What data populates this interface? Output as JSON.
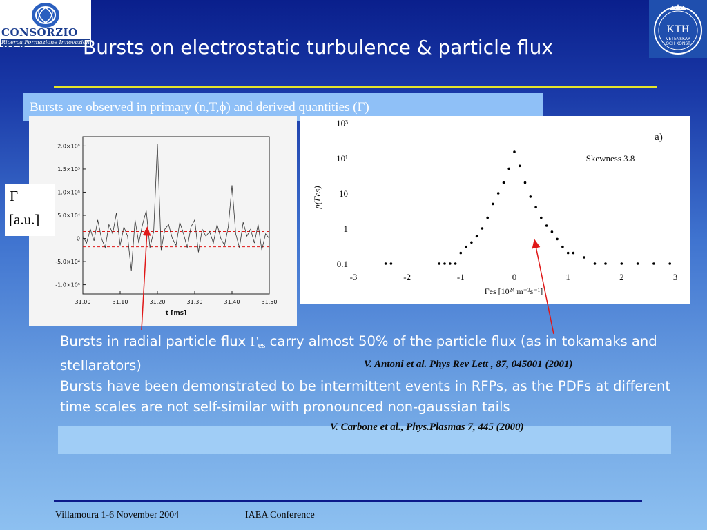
{
  "logos": {
    "left_name": "CONSORZIO RFX",
    "left_sub": "Ricerca Formazione Innovazione",
    "right_text1": "KTH",
    "right_text2": "VETENSKAP",
    "right_text3": "OCH KONST"
  },
  "title": "Bursts on electrostatic turbulence & particle flux",
  "subtitle": "Bursts are observed in primary (n,T,ϕ) and derived quantities (Γ)",
  "gamma_label": {
    "line1": "Γ",
    "line2": "[a.u.]"
  },
  "body": {
    "p1_a": "Bursts in radial particle flux ",
    "p1_gamma": "Γ",
    "p1_sub": "es",
    "p1_b": " carry almost 50% of the particle flux (as in tokamaks and stellarators)",
    "p2": "Bursts have been demonstrated to be  intermittent events in RFPs, as the PDFs at different time scales are not self-similar with pronounced non-gaussian tails"
  },
  "refs": {
    "ref1": "V. Antoni et al. Phys Rev Lett , 87, 045001 (2001)",
    "ref2": "V. Carbone et al., Phys.Plasmas 7, 445 (2000)"
  },
  "footer": {
    "left": "Villamoura 1-6 November 2004",
    "right": "IAEA Conference"
  },
  "colors": {
    "title_rule": "#e5e52a",
    "subtitle_bar": "#8fc0f7",
    "arrow": "#e01818",
    "footer_rule": "#0c1a8a"
  },
  "chart_data": [
    {
      "type": "line",
      "xlabel": "t [ms]",
      "ylabel": "",
      "x_ticks": [
        "31.00",
        "31.10",
        "31.20",
        "31.30",
        "31.40",
        "31.50"
      ],
      "y_ticks": [
        "2.0×10⁵",
        "1.5×10⁵",
        "1.0×10⁵",
        "5.0×10⁴",
        "0",
        "-5.0×10⁴",
        "-1.0×10⁵"
      ],
      "xlim": [
        31.0,
        31.5
      ],
      "ylim": [
        -120000,
        220000
      ],
      "threshold_lines": [
        15000,
        -18000
      ],
      "series": [
        {
          "x": [
            31.0,
            31.01,
            31.02,
            31.03,
            31.04,
            31.05,
            31.06,
            31.07,
            31.08,
            31.09,
            31.1,
            31.11,
            31.12,
            31.13,
            31.14,
            31.15,
            31.16,
            31.17,
            31.18,
            31.19,
            31.2,
            31.21,
            31.22,
            31.23,
            31.24,
            31.25,
            31.26,
            31.27,
            31.28,
            31.29,
            31.3,
            31.31,
            31.32,
            31.33,
            31.34,
            31.35,
            31.36,
            31.37,
            31.38,
            31.39,
            31.4,
            31.41,
            31.42,
            31.43,
            31.44,
            31.45,
            31.46,
            31.47,
            31.48,
            31.49,
            31.5
          ],
          "y": [
            5000,
            -10000,
            20000,
            -5000,
            40000,
            0,
            -20000,
            30000,
            10000,
            55000,
            -15000,
            25000,
            5000,
            -70000,
            40000,
            -10000,
            30000,
            60000,
            -20000,
            15000,
            205000,
            -25000,
            20000,
            30000,
            0,
            -15000,
            35000,
            10000,
            -20000,
            25000,
            40000,
            -30000,
            20000,
            5000,
            15000,
            -10000,
            30000,
            0,
            -15000,
            25000,
            115000,
            10000,
            -20000,
            35000,
            5000,
            20000,
            -10000,
            30000,
            -25000,
            10000,
            0
          ]
        }
      ]
    },
    {
      "type": "scatter",
      "title": "a)",
      "annotation": "Skewness 3.8",
      "xlabel": "Γes [10²⁴ m⁻²s⁻¹]",
      "ylabel": "p(Γes)",
      "yscale": "log",
      "x_ticks": [
        "-3",
        "-2",
        "-1",
        "0",
        "1",
        "2",
        "3"
      ],
      "y_ticks": [
        "0.1",
        "1",
        "10",
        "10¹",
        "10³"
      ],
      "xlim": [
        -3,
        3
      ],
      "ylim": [
        0.1,
        1000
      ],
      "series": [
        {
          "x": [
            -2.4,
            -2.3,
            -1.4,
            -1.3,
            -1.2,
            -1.1,
            -1.0,
            -0.9,
            -0.8,
            -0.7,
            -0.6,
            -0.5,
            -0.4,
            -0.3,
            -0.2,
            -0.1,
            0.0,
            0.1,
            0.2,
            0.3,
            0.4,
            0.5,
            0.6,
            0.7,
            0.8,
            0.9,
            1.0,
            1.1,
            1.3,
            1.5,
            1.7,
            2.0,
            2.3,
            2.6,
            2.9
          ],
          "y": [
            0.1,
            0.1,
            0.1,
            0.1,
            0.1,
            0.1,
            0.2,
            0.3,
            0.4,
            0.6,
            1.0,
            2.0,
            5.0,
            10.0,
            20.0,
            50.0,
            150.0,
            60.0,
            20.0,
            8.0,
            4.0,
            2.0,
            1.2,
            0.8,
            0.5,
            0.3,
            0.2,
            0.2,
            0.15,
            0.1,
            0.1,
            0.1,
            0.1,
            0.1,
            0.1
          ]
        }
      ]
    }
  ]
}
